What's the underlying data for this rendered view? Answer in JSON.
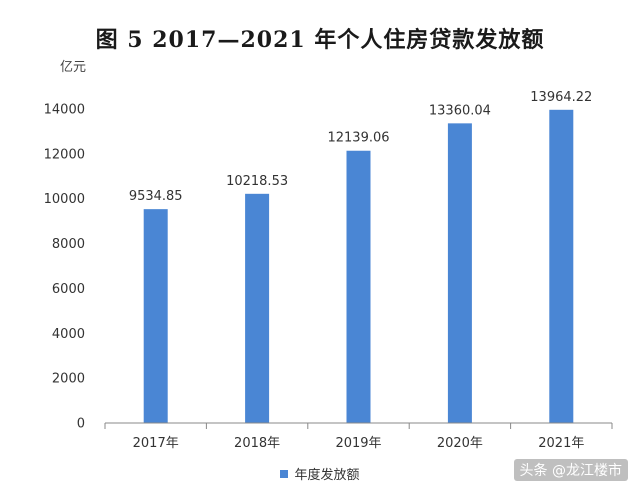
{
  "title": "图 5   2017—2021 年个人住房贷款发放额",
  "unit": "亿元",
  "watermark": "头条 @龙江楼市",
  "colors": {
    "bar": "#4a86d4",
    "axis": "#888888"
  },
  "chart_data": {
    "type": "bar",
    "categories": [
      "2017年",
      "2018年",
      "2019年",
      "2020年",
      "2021年"
    ],
    "series": [
      {
        "name": "年度发放额",
        "values": [
          9534.85,
          10218.53,
          12139.06,
          13360.04,
          13964.22
        ]
      }
    ],
    "data_labels": [
      "9534.85",
      "10218.53",
      "12139.06",
      "13360.04",
      "13964.22"
    ],
    "yticks": [
      "0",
      "2000",
      "4000",
      "6000",
      "8000",
      "10000",
      "12000",
      "14000"
    ],
    "ylim": [
      0,
      14000
    ],
    "grid": false,
    "legend_position": "bottom"
  }
}
